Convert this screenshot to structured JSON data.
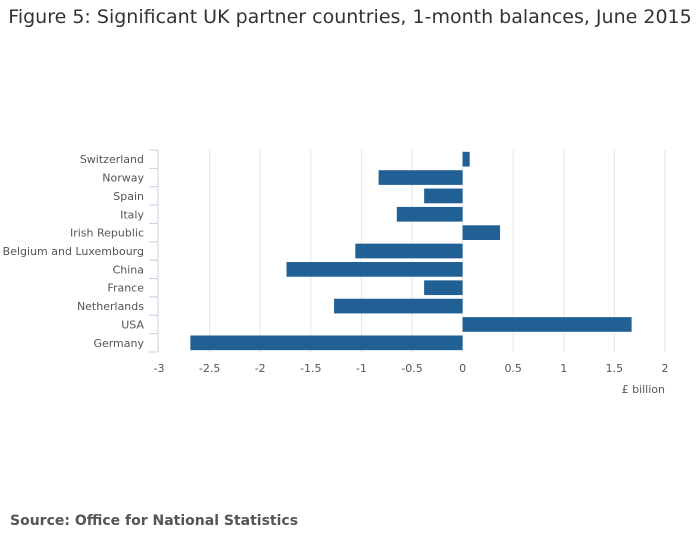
{
  "chart_data": {
    "type": "bar",
    "orientation": "horizontal",
    "title": "Figure 5: Significant UK partner countries, 1-month balances, June 2015",
    "xlabel": "£ billion",
    "ylabel": "",
    "xlim": [
      -3,
      2
    ],
    "xticks": [
      -3,
      -2.5,
      -2,
      -1.5,
      -1,
      -0.5,
      0,
      0.5,
      1,
      1.5,
      2
    ],
    "xtick_labels": [
      "-3",
      "-2.5",
      "-2",
      "-1.5",
      "-1",
      "-0.5",
      "0",
      "0.5",
      "1",
      "1.5",
      "2"
    ],
    "grid": true,
    "bar_color": "#206095",
    "categories": [
      "Switzerland",
      "Norway",
      "Spain",
      "Italy",
      "Irish Republic",
      "Belgium and Luxembourg",
      "China",
      "France",
      "Netherlands",
      "USA",
      "Germany"
    ],
    "values": [
      0.07,
      -0.83,
      -0.38,
      -0.65,
      0.37,
      -1.06,
      -1.74,
      -0.38,
      -1.27,
      1.67,
      -2.69
    ]
  },
  "source": "Source: Office for National Statistics"
}
